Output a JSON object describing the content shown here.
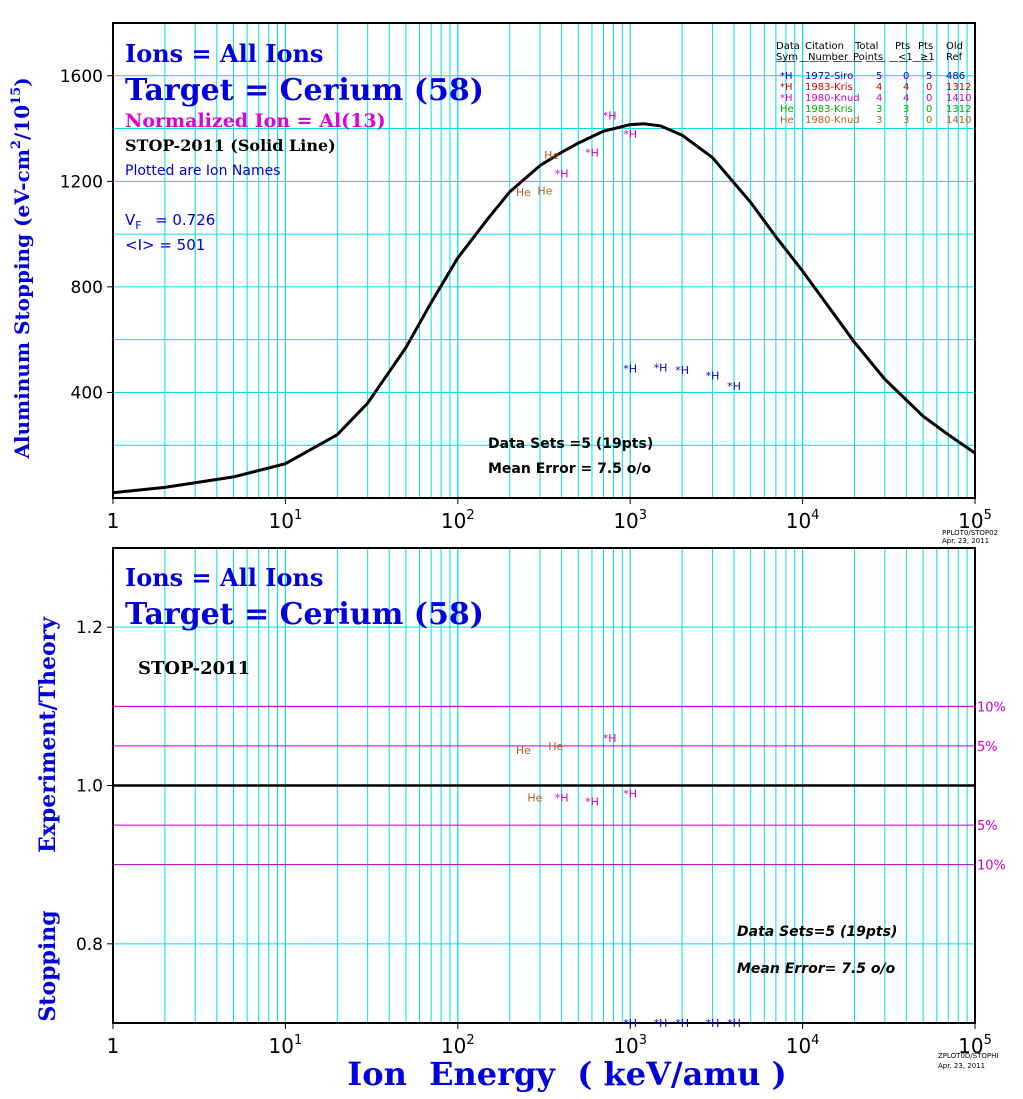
{
  "chart_data": [
    {
      "type": "line",
      "title_lines": [
        "Ions = All Ions",
        "Target = Cerium (58)",
        "Normalized Ion = Al(13)",
        "STOP-2011 (Solid Line)",
        "Plotted are Ion Names"
      ],
      "vf_label": "V",
      "vf_sub": "F",
      "vf_value": "= 0.726",
      "mean_i": "<I> = 501",
      "ylabel_parts": [
        "Aluminum Stopping (eV-cm",
        "2",
        "/10",
        "15",
        ")"
      ],
      "x_scale": "log",
      "xlim": [
        1,
        100000
      ],
      "ylim": [
        0,
        1800
      ],
      "y_ticks": [
        400,
        800,
        1200,
        1600
      ],
      "x_tick_labels": [
        {
          "base": "1",
          "exp": ""
        },
        {
          "base": "10",
          "exp": "1"
        },
        {
          "base": "10",
          "exp": "2"
        },
        {
          "base": "10",
          "exp": "3"
        },
        {
          "base": "10",
          "exp": "4"
        },
        {
          "base": "10",
          "exp": "5"
        }
      ],
      "grid": true,
      "curve": {
        "name": "STOP-2011 (Solid Line)",
        "x": [
          1,
          2,
          5,
          10,
          20,
          30,
          50,
          70,
          100,
          150,
          200,
          300,
          400,
          500,
          700,
          1000,
          1200,
          1500,
          2000,
          3000,
          5000,
          7000,
          10000,
          20000,
          30000,
          50000,
          70000,
          100000
        ],
        "y": [
          20,
          40,
          80,
          130,
          240,
          360,
          570,
          740,
          910,
          1060,
          1160,
          1260,
          1310,
          1345,
          1390,
          1415,
          1418,
          1410,
          1375,
          1290,
          1120,
          990,
          860,
          590,
          450,
          310,
          240,
          170
        ]
      },
      "points": [
        {
          "label": "*H",
          "x": 760,
          "y": 1450,
          "color": "#cc00cc"
        },
        {
          "label": "*H",
          "x": 1000,
          "y": 1380,
          "color": "#cc00cc"
        },
        {
          "label": "*H",
          "x": 600,
          "y": 1310,
          "color": "#cc00cc"
        },
        {
          "label": "*H",
          "x": 400,
          "y": 1230,
          "color": "#cc00cc"
        },
        {
          "label": "He",
          "x": 350,
          "y": 1300,
          "color": "#b06020"
        },
        {
          "label": "He",
          "x": 240,
          "y": 1160,
          "color": "#b06020"
        },
        {
          "label": "He",
          "x": 320,
          "y": 1165,
          "color": "#b06020"
        },
        {
          "label": "*H",
          "x": 1000,
          "y": 490,
          "color": "#0000cc"
        },
        {
          "label": "*H",
          "x": 1500,
          "y": 495,
          "color": "#0000cc"
        },
        {
          "label": "*H",
          "x": 2000,
          "y": 485,
          "color": "#0000cc"
        },
        {
          "label": "*H",
          "x": 3000,
          "y": 465,
          "color": "#0000cc"
        },
        {
          "label": "*H",
          "x": 4000,
          "y": 425,
          "color": "#0000cc"
        }
      ],
      "legend": {
        "placement": "top-right",
        "header_row1": [
          "Data",
          "Citation",
          "Total",
          "Pts",
          "Pts",
          "Old"
        ],
        "header_row2": [
          "Sym",
          "Number",
          "Points",
          "<1",
          "≥1",
          "Ref"
        ],
        "rows": [
          {
            "sym": "*H",
            "citation": "1972-Siro",
            "total": "5",
            "lt1": "0",
            "ge1": "5",
            "ref": "486",
            "color": "#0000cc"
          },
          {
            "sym": "*H",
            "citation": "1983-Kris",
            "total": "4",
            "lt1": "4",
            "ge1": "0",
            "ref": "1312",
            "color": "#cc0000"
          },
          {
            "sym": "*H",
            "citation": "1980-Knud",
            "total": "4",
            "lt1": "4",
            "ge1": "0",
            "ref": "1410",
            "color": "#cc00cc"
          },
          {
            "sym": "He",
            "citation": "1983-Kris",
            "total": "3",
            "lt1": "3",
            "ge1": "0",
            "ref": "1312",
            "color": "#00aa00"
          },
          {
            "sym": "He",
            "citation": "1980-Knud",
            "total": "3",
            "lt1": "3",
            "ge1": "0",
            "ref": "1410",
            "color": "#b06020"
          }
        ]
      },
      "annotations": [
        "Data Sets =5 (19pts)",
        "Mean Error =  7.5 o/o"
      ],
      "footer": [
        "PPLOT0/STOP02",
        "Apr. 23, 2011"
      ]
    },
    {
      "type": "scatter",
      "title_lines": [
        "Ions = All Ions",
        "Target = Cerium (58)",
        "STOP-2011"
      ],
      "ylabel_parts": [
        "Stopping",
        "Experiment/Theory"
      ],
      "xlabel": "Ion  Energy  ( keV/amu )",
      "x_scale": "log",
      "xlim": [
        1,
        100000
      ],
      "ylim": [
        0.7,
        1.3
      ],
      "y_ticks": [
        0.8,
        1.0,
        1.2
      ],
      "y_tick_labels": [
        "0.8",
        "1.0",
        "1.2"
      ],
      "x_tick_labels": [
        {
          "base": "1",
          "exp": ""
        },
        {
          "base": "10",
          "exp": "1"
        },
        {
          "base": "10",
          "exp": "2"
        },
        {
          "base": "10",
          "exp": "3"
        },
        {
          "base": "10",
          "exp": "4"
        },
        {
          "base": "10",
          "exp": "5"
        }
      ],
      "grid": true,
      "reference_line": 1.0,
      "bands": [
        {
          "value": 1.1,
          "label": "10%"
        },
        {
          "value": 1.05,
          "label": "5%"
        },
        {
          "value": 0.95,
          "label": "5%"
        },
        {
          "value": 0.9,
          "label": "10%"
        }
      ],
      "points": [
        {
          "label": "He",
          "x": 240,
          "y": 1.045,
          "color": "#b06020"
        },
        {
          "label": "He",
          "x": 370,
          "y": 1.05,
          "color": "#b06020"
        },
        {
          "label": "*H",
          "x": 760,
          "y": 1.06,
          "color": "#cc00cc"
        },
        {
          "label": "He",
          "x": 280,
          "y": 0.985,
          "color": "#b06020"
        },
        {
          "label": "*H",
          "x": 400,
          "y": 0.985,
          "color": "#cc00cc"
        },
        {
          "label": "*H",
          "x": 600,
          "y": 0.98,
          "color": "#cc00cc"
        },
        {
          "label": "*H",
          "x": 1000,
          "y": 0.99,
          "color": "#cc00cc"
        },
        {
          "label": "*H",
          "x": 1000,
          "y": 0.7,
          "color": "#0000cc"
        },
        {
          "label": "*H",
          "x": 1500,
          "y": 0.7,
          "color": "#0000cc"
        },
        {
          "label": "*H",
          "x": 2000,
          "y": 0.7,
          "color": "#0000cc"
        },
        {
          "label": "*H",
          "x": 3000,
          "y": 0.7,
          "color": "#0000cc"
        },
        {
          "label": "*H",
          "x": 4000,
          "y": 0.7,
          "color": "#0000cc"
        }
      ],
      "annotations": [
        "Data Sets=5 (19pts)",
        "Mean Error=  7.5 o/o"
      ],
      "footer": [
        "ZPLOT0D/STOPHI",
        "Apr. 23, 2011"
      ]
    }
  ],
  "colors": {
    "grid": "#00e0e0",
    "axis": "#000000",
    "title_blue": "#0000dd",
    "magenta": "#dd00dd",
    "band": "#cc00cc"
  }
}
